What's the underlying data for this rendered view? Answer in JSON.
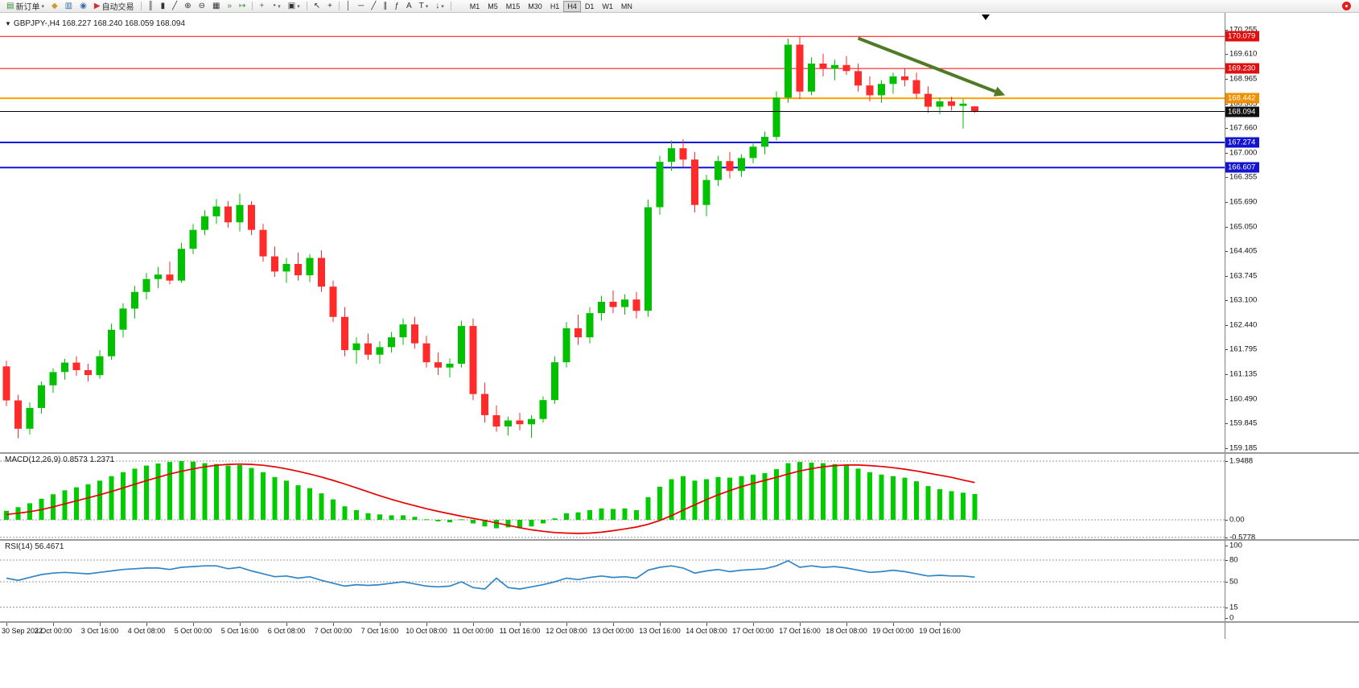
{
  "toolbar": {
    "buttons": [
      {
        "id": "new-order",
        "glyph": "▤",
        "color": "#2e8b2e",
        "label": "新订单",
        "caret": true
      },
      {
        "id": "depth-of-market",
        "glyph": "◆",
        "color": "#c99a2e"
      },
      {
        "id": "data-window",
        "glyph": "▥",
        "color": "#3b6ea5"
      },
      {
        "id": "alerts",
        "glyph": "◉",
        "color": "#3b6ea5"
      },
      {
        "id": "autotrading",
        "glyph": "▶",
        "color": "#d03030",
        "label": "自动交易"
      },
      {
        "sep": true
      },
      {
        "id": "bar-chart",
        "glyph": "║"
      },
      {
        "id": "candlestick-chart",
        "glyph": "▮"
      },
      {
        "id": "line-chart",
        "glyph": "╱"
      },
      {
        "id": "zoom-in",
        "glyph": "⊕"
      },
      {
        "id": "zoom-out",
        "glyph": "⊖"
      },
      {
        "id": "tile-windows",
        "glyph": "▦"
      },
      {
        "id": "auto-scroll",
        "glyph": "»",
        "color": "#2e8b2e"
      },
      {
        "id": "chart-shift",
        "glyph": "↦",
        "color": "#2e8b2e"
      },
      {
        "sep": true
      },
      {
        "id": "indicators",
        "glyph": "+",
        "color": "#2e8b2e"
      },
      {
        "id": "periods",
        "glyph": "◔",
        "caret": true
      },
      {
        "id": "templates",
        "glyph": "▣",
        "caret": true
      },
      {
        "sep": true
      },
      {
        "id": "cursor",
        "glyph": "↖"
      },
      {
        "id": "crosshair",
        "glyph": "+"
      },
      {
        "sep": true
      },
      {
        "id": "vertical-line",
        "glyph": "│"
      },
      {
        "id": "horizontal-line",
        "glyph": "─"
      },
      {
        "id": "trendline",
        "glyph": "╱"
      },
      {
        "id": "equidistant-channel",
        "glyph": "∥"
      },
      {
        "id": "fibonacci",
        "glyph": "ƒ"
      },
      {
        "id": "text",
        "glyph": "A"
      },
      {
        "id": "text-label",
        "glyph": "T",
        "caret": true
      },
      {
        "id": "arrows",
        "glyph": "↓",
        "caret": true
      },
      {
        "sep": true
      }
    ],
    "timeframes": {
      "options": [
        "M1",
        "M5",
        "M15",
        "M30",
        "H1",
        "H4",
        "D1",
        "W1",
        "MN"
      ],
      "active": "H4"
    }
  },
  "chart": {
    "collapse_icon": "▼",
    "symbol_line": "GBPJPY-,H4  168.227 168.240 168.059 168.094"
  },
  "chart_data": {
    "type": "candlestick",
    "symbol": "GBPJPY-",
    "timeframe": "H4",
    "style": {
      "bull": "#00C000",
      "bear": "#FF2A2A",
      "background": "#FFFFFF"
    },
    "y_axis": {
      "range": {
        "max": 170.7,
        "min": 159.08
      },
      "ticks": [
        "170.255",
        "169.610",
        "168.965",
        "168.305",
        "167.660",
        "167.000",
        "166.355",
        "165.690",
        "165.050",
        "164.405",
        "163.745",
        "163.100",
        "162.440",
        "161.795",
        "161.135",
        "160.490",
        "159.845",
        "159.185"
      ]
    },
    "hlines": [
      {
        "price": 170.079,
        "label": "170.079",
        "color": "#FF0000",
        "width": 1,
        "label_bg": "#E01010"
      },
      {
        "price": 169.23,
        "label": "169.230",
        "color": "#FF0000",
        "width": 1,
        "label_bg": "#E01010"
      },
      {
        "price": 168.442,
        "label": "168.442",
        "color": "#FFA000",
        "width": 2,
        "label_bg": "#F09000"
      },
      {
        "price": 167.274,
        "label": "167.274",
        "color": "#1414E0",
        "width": 2,
        "label_bg": "#1414D0"
      },
      {
        "price": 166.607,
        "label": "166.607",
        "color": "#1414E0",
        "width": 2,
        "label_bg": "#1414D0"
      }
    ],
    "current_price": {
      "price": 168.094,
      "label": "168.094",
      "color": "#000000",
      "label_bg": "#101010"
    },
    "trend_arrow": {
      "from_index": 73,
      "from_price": 170.03,
      "to_index": 85.6,
      "to_price": 168.52,
      "color": "#4F7A28",
      "width": 4
    },
    "label_step": 4,
    "x_labels": [
      "30 Sep 2022",
      "3 Oct 00:00",
      "3 Oct 16:00",
      "4 Oct 08:00",
      "5 Oct 00:00",
      "5 Oct 16:00",
      "6 Oct 08:00",
      "7 Oct 00:00",
      "7 Oct 16:00",
      "10 Oct 08:00",
      "11 Oct 00:00",
      "11 Oct 16:00",
      "12 Oct 08:00",
      "13 Oct 00:00",
      "13 Oct 16:00",
      "14 Oct 08:00",
      "17 Oct 00:00",
      "17 Oct 16:00",
      "18 Oct 08:00",
      "19 Oct 00:00",
      "19 Oct 16:00"
    ],
    "candles": [
      [
        161.35,
        161.5,
        160.3,
        160.45
      ],
      [
        160.45,
        160.6,
        159.45,
        159.7
      ],
      [
        159.7,
        160.4,
        159.55,
        160.25
      ],
      [
        160.25,
        160.95,
        160.1,
        160.85
      ],
      [
        160.85,
        161.3,
        160.65,
        161.2
      ],
      [
        161.2,
        161.55,
        161.0,
        161.45
      ],
      [
        161.45,
        161.62,
        161.1,
        161.25
      ],
      [
        161.25,
        161.42,
        160.95,
        161.12
      ],
      [
        161.12,
        161.78,
        161.02,
        161.62
      ],
      [
        161.62,
        162.48,
        161.52,
        162.32
      ],
      [
        162.32,
        163.02,
        162.12,
        162.88
      ],
      [
        162.88,
        163.48,
        162.62,
        163.32
      ],
      [
        163.32,
        163.82,
        163.12,
        163.66
      ],
      [
        163.66,
        163.98,
        163.42,
        163.78
      ],
      [
        163.78,
        164.12,
        163.52,
        163.62
      ],
      [
        163.62,
        164.62,
        163.56,
        164.46
      ],
      [
        164.46,
        165.12,
        164.32,
        164.96
      ],
      [
        164.96,
        165.48,
        164.82,
        165.32
      ],
      [
        165.32,
        165.78,
        165.12,
        165.58
      ],
      [
        165.58,
        165.72,
        165.02,
        165.16
      ],
      [
        165.16,
        165.92,
        164.92,
        165.62
      ],
      [
        165.62,
        165.72,
        164.82,
        164.96
      ],
      [
        164.96,
        165.12,
        164.12,
        164.26
      ],
      [
        164.26,
        164.52,
        163.72,
        163.86
      ],
      [
        163.86,
        164.22,
        163.56,
        164.06
      ],
      [
        164.06,
        164.36,
        163.62,
        163.76
      ],
      [
        163.76,
        164.32,
        163.58,
        164.22
      ],
      [
        164.22,
        164.42,
        163.32,
        163.46
      ],
      [
        163.46,
        163.62,
        162.52,
        162.66
      ],
      [
        162.66,
        162.92,
        161.62,
        161.78
      ],
      [
        161.78,
        162.12,
        161.42,
        161.96
      ],
      [
        161.96,
        162.22,
        161.52,
        161.66
      ],
      [
        161.66,
        162.02,
        161.42,
        161.86
      ],
      [
        161.86,
        162.26,
        161.72,
        162.12
      ],
      [
        162.12,
        162.62,
        161.92,
        162.46
      ],
      [
        162.46,
        162.66,
        161.82,
        161.96
      ],
      [
        161.96,
        162.16,
        161.32,
        161.46
      ],
      [
        161.46,
        161.72,
        161.12,
        161.32
      ],
      [
        161.32,
        161.56,
        161.06,
        161.42
      ],
      [
        161.42,
        162.56,
        161.32,
        162.42
      ],
      [
        162.42,
        162.62,
        160.46,
        160.62
      ],
      [
        160.62,
        160.92,
        159.86,
        160.06
      ],
      [
        160.06,
        160.32,
        159.62,
        159.76
      ],
      [
        159.76,
        160.02,
        159.52,
        159.92
      ],
      [
        159.92,
        160.12,
        159.66,
        159.82
      ],
      [
        159.82,
        160.06,
        159.46,
        159.96
      ],
      [
        159.96,
        160.56,
        159.86,
        160.46
      ],
      [
        160.46,
        161.62,
        160.36,
        161.46
      ],
      [
        161.46,
        162.52,
        161.32,
        162.36
      ],
      [
        162.36,
        162.72,
        161.92,
        162.12
      ],
      [
        162.12,
        162.92,
        161.96,
        162.76
      ],
      [
        162.76,
        163.22,
        162.56,
        163.06
      ],
      [
        163.06,
        163.36,
        162.76,
        162.92
      ],
      [
        162.92,
        163.26,
        162.72,
        163.12
      ],
      [
        163.12,
        163.32,
        162.62,
        162.82
      ],
      [
        162.82,
        165.76,
        162.66,
        165.56
      ],
      [
        165.56,
        166.92,
        165.36,
        166.76
      ],
      [
        166.76,
        167.32,
        166.52,
        167.12
      ],
      [
        167.12,
        167.36,
        166.62,
        166.82
      ],
      [
        166.82,
        167.02,
        165.42,
        165.62
      ],
      [
        165.62,
        166.42,
        165.32,
        166.28
      ],
      [
        166.28,
        166.92,
        166.12,
        166.78
      ],
      [
        166.78,
        167.02,
        166.32,
        166.52
      ],
      [
        166.52,
        166.96,
        166.36,
        166.86
      ],
      [
        166.86,
        167.28,
        166.72,
        167.16
      ],
      [
        167.16,
        167.56,
        166.96,
        167.42
      ],
      [
        167.42,
        168.62,
        167.32,
        168.46
      ],
      [
        168.46,
        170.02,
        168.32,
        169.86
      ],
      [
        169.86,
        170.08,
        168.42,
        168.62
      ],
      [
        168.62,
        169.52,
        168.52,
        169.36
      ],
      [
        169.36,
        169.62,
        169.02,
        169.22
      ],
      [
        169.22,
        169.46,
        168.92,
        169.32
      ],
      [
        169.32,
        169.56,
        169.06,
        169.16
      ],
      [
        169.16,
        169.36,
        168.62,
        168.78
      ],
      [
        168.78,
        169.02,
        168.36,
        168.52
      ],
      [
        168.52,
        168.92,
        168.32,
        168.82
      ],
      [
        168.82,
        169.12,
        168.56,
        169.02
      ],
      [
        169.02,
        169.22,
        168.76,
        168.92
      ],
      [
        168.92,
        169.12,
        168.42,
        168.56
      ],
      [
        168.56,
        168.76,
        168.06,
        168.22
      ],
      [
        168.22,
        168.46,
        168.02,
        168.36
      ],
      [
        168.36,
        168.48,
        168.12,
        168.24
      ],
      [
        168.24,
        168.42,
        167.64,
        168.3
      ],
      [
        168.227,
        168.24,
        168.059,
        168.094
      ]
    ],
    "indicators": [
      {
        "id": "macd",
        "label": "MACD(12,26,9) 0.8573 1.2371",
        "range": {
          "max": 2.19,
          "min": -0.64
        },
        "level_lines": [
          1.9488,
          0,
          -0.5778
        ],
        "scale_values": [
          1.9488,
          0,
          -0.5778
        ],
        "scale_labels": [
          "1.9488",
          "0.00",
          "-0.5778"
        ],
        "colors": {
          "histogram": "#00CC00",
          "signal": "#E80000"
        },
        "histogram": [
          0.3,
          0.42,
          0.55,
          0.7,
          0.85,
          0.98,
          1.08,
          1.18,
          1.3,
          1.45,
          1.58,
          1.7,
          1.8,
          1.87,
          1.92,
          1.95,
          1.93,
          1.88,
          1.85,
          1.8,
          1.82,
          1.72,
          1.58,
          1.42,
          1.3,
          1.15,
          1.05,
          0.88,
          0.68,
          0.45,
          0.32,
          0.22,
          0.18,
          0.15,
          0.15,
          0.1,
          0.02,
          -0.05,
          -0.08,
          0.02,
          -0.12,
          -0.22,
          -0.28,
          -0.25,
          -0.28,
          -0.22,
          -0.12,
          0.05,
          0.22,
          0.25,
          0.32,
          0.38,
          0.36,
          0.38,
          0.32,
          0.75,
          1.1,
          1.35,
          1.45,
          1.3,
          1.35,
          1.42,
          1.4,
          1.45,
          1.5,
          1.55,
          1.68,
          1.88,
          1.92,
          1.9,
          1.88,
          1.85,
          1.8,
          1.7,
          1.58,
          1.5,
          1.45,
          1.4,
          1.28,
          1.12,
          1.02,
          0.95,
          0.9,
          0.8573
        ],
        "signal": [
          0.18,
          0.22,
          0.27,
          0.34,
          0.43,
          0.53,
          0.63,
          0.73,
          0.83,
          0.94,
          1.06,
          1.18,
          1.3,
          1.41,
          1.52,
          1.61,
          1.69,
          1.76,
          1.81,
          1.84,
          1.85,
          1.84,
          1.81,
          1.76,
          1.69,
          1.61,
          1.52,
          1.42,
          1.31,
          1.19,
          1.06,
          0.93,
          0.8,
          0.68,
          0.57,
          0.47,
          0.37,
          0.28,
          0.2,
          0.12,
          0.05,
          -0.02,
          -0.1,
          -0.18,
          -0.26,
          -0.33,
          -0.38,
          -0.42,
          -0.44,
          -0.45,
          -0.44,
          -0.41,
          -0.36,
          -0.3,
          -0.24,
          -0.15,
          -0.02,
          0.14,
          0.32,
          0.5,
          0.67,
          0.83,
          0.97,
          1.1,
          1.21,
          1.31,
          1.41,
          1.52,
          1.62,
          1.7,
          1.76,
          1.8,
          1.82,
          1.82,
          1.8,
          1.77,
          1.73,
          1.68,
          1.62,
          1.55,
          1.48,
          1.41,
          1.32,
          1.2371
        ]
      },
      {
        "id": "rsi",
        "label": "RSI(14) 56.4671",
        "range": {
          "max": 106.7,
          "min": -4.4
        },
        "level_lines": [
          80,
          50,
          15
        ],
        "scale_values": [
          100,
          80,
          50,
          15,
          0
        ],
        "scale_labels": [
          "100",
          "80",
          "50",
          "15",
          "0"
        ],
        "color": "#2E86C8",
        "values": [
          55,
          52,
          56,
          60,
          62,
          63,
          62,
          61,
          63,
          65,
          67,
          68,
          69,
          69,
          67,
          70,
          71,
          72,
          72,
          68,
          70,
          65,
          61,
          57,
          58,
          55,
          57,
          52,
          48,
          44,
          46,
          45,
          46,
          48,
          50,
          47,
          44,
          43,
          44,
          50,
          42,
          40,
          55,
          42,
          40,
          43,
          46,
          50,
          55,
          53,
          56,
          58,
          56,
          57,
          55,
          66,
          70,
          72,
          69,
          62,
          65,
          67,
          64,
          66,
          67,
          68,
          72,
          79,
          70,
          72,
          70,
          71,
          69,
          66,
          63,
          64,
          66,
          64,
          61,
          58,
          59,
          58,
          58,
          56.4671
        ]
      }
    ]
  }
}
